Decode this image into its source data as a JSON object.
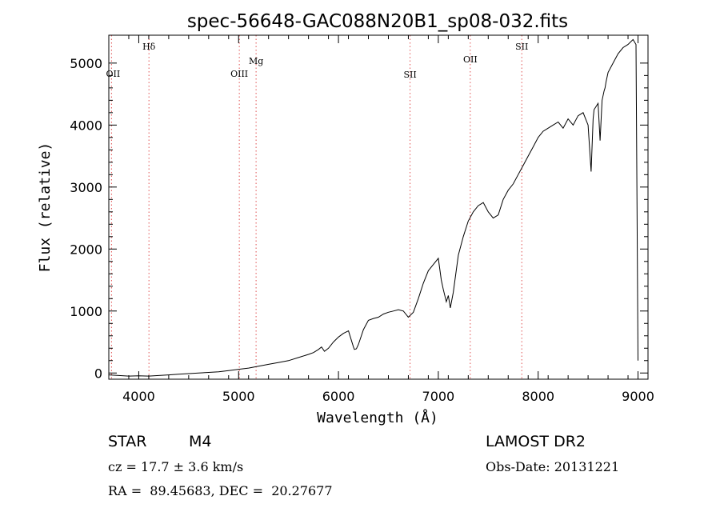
{
  "chart_data": {
    "type": "line",
    "title": "spec-56648-GAC088N20B1_sp08-032.fits",
    "xlabel": "Wavelength (Å)",
    "ylabel": "Flux (relative)",
    "xlim": [
      3700,
      9100
    ],
    "ylim": [
      -100,
      5450
    ],
    "x_ticks": [
      4000,
      5000,
      6000,
      7000,
      8000,
      9000
    ],
    "y_ticks": [
      0,
      1000,
      2000,
      3000,
      4000,
      5000
    ],
    "grid": false,
    "series": [
      {
        "x": [
          3700,
          3800,
          3900,
          4000,
          4100,
          4200,
          4300,
          4400,
          4500,
          4600,
          4700,
          4800,
          4900,
          5000,
          5100,
          5200,
          5300,
          5400,
          5500,
          5600,
          5700,
          5750,
          5800,
          5830,
          5860,
          5900,
          5950,
          6000,
          6050,
          6100,
          6150,
          6160,
          6180,
          6200,
          6250,
          6300,
          6350,
          6400,
          6450,
          6500,
          6550,
          6600,
          6650,
          6700,
          6750,
          6800,
          6850,
          6900,
          6950,
          7000,
          7030,
          7050,
          7080,
          7100,
          7120,
          7150,
          7200,
          7250,
          7300,
          7350,
          7400,
          7450,
          7500,
          7550,
          7600,
          7650,
          7700,
          7750,
          7800,
          7850,
          7900,
          7950,
          8000,
          8050,
          8100,
          8150,
          8200,
          8250,
          8300,
          8350,
          8400,
          8450,
          8500,
          8530,
          8550,
          8560,
          8580,
          8600,
          8620,
          8640,
          8660,
          8670,
          8680,
          8700,
          8750,
          8800,
          8850,
          8900,
          8950,
          8980,
          9000
        ],
        "y": [
          -30,
          -40,
          -50,
          -45,
          -50,
          -40,
          -30,
          -20,
          -10,
          0,
          10,
          20,
          40,
          60,
          80,
          110,
          140,
          170,
          200,
          250,
          300,
          330,
          380,
          420,
          350,
          400,
          500,
          580,
          640,
          680,
          420,
          380,
          390,
          460,
          700,
          850,
          880,
          900,
          950,
          980,
          1000,
          1020,
          1000,
          900,
          980,
          1200,
          1450,
          1650,
          1750,
          1850,
          1500,
          1350,
          1150,
          1250,
          1050,
          1300,
          1900,
          2200,
          2450,
          2600,
          2700,
          2750,
          2600,
          2500,
          2550,
          2800,
          2950,
          3050,
          3200,
          3350,
          3500,
          3650,
          3800,
          3900,
          3950,
          4000,
          4050,
          3950,
          4100,
          4000,
          4150,
          4200,
          4000,
          3250,
          4100,
          4250,
          4300,
          4350,
          3750,
          4400,
          4550,
          4600,
          4700,
          4850,
          5000,
          5150,
          5250,
          5300,
          5380,
          5300,
          200
        ]
      }
    ],
    "lines": [
      {
        "label": "OII",
        "x": 3727
      },
      {
        "label": "Hδ",
        "x": 4102
      },
      {
        "label": "OIII",
        "x": 5007
      },
      {
        "label": "Mg",
        "x": 5175
      },
      {
        "label": "SII",
        "x": 6717
      },
      {
        "label": "OII",
        "x": 7320
      },
      {
        "label": "SII",
        "x": 7836
      }
    ]
  },
  "info": {
    "class": "STAR",
    "subclass": "M4",
    "survey": "LAMOST DR2",
    "cz": "cz = 17.7 ± 3.6 km/s",
    "obs_date": "Obs-Date: 20131221",
    "radec": "RA =  89.45683, DEC =  20.27677"
  }
}
